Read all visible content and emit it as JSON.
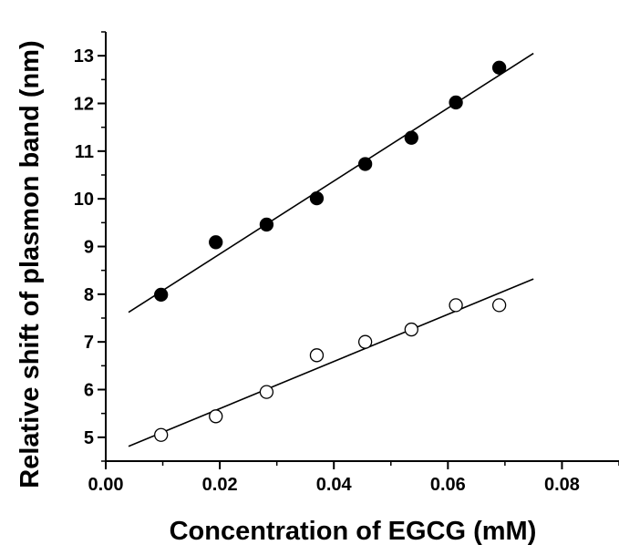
{
  "chart_data": {
    "type": "scatter",
    "title": "",
    "xlabel": "Concentration of EGCG (mM)",
    "ylabel": "Relative shift of plasmon band (nm)",
    "xlim": [
      0.0,
      0.09
    ],
    "ylim": [
      4.5,
      13.5
    ],
    "x_ticks": [
      0.0,
      0.02,
      0.04,
      0.06,
      0.08
    ],
    "x_tick_labels": [
      "0.00",
      "0.02",
      "0.04",
      "0.06",
      "0.08"
    ],
    "y_ticks": [
      5,
      6,
      7,
      8,
      9,
      10,
      11,
      12,
      13
    ],
    "y_tick_labels": [
      "5",
      "6",
      "7",
      "8",
      "9",
      "10",
      "11",
      "12",
      "13"
    ],
    "grid": false,
    "legend": "none",
    "series": [
      {
        "marker": "filled-circle",
        "x": [
          0.0097,
          0.0193,
          0.0282,
          0.037,
          0.0455,
          0.0536,
          0.0614,
          0.069
        ],
        "y": [
          7.99,
          9.09,
          9.46,
          10.01,
          10.73,
          11.28,
          12.02,
          12.75
        ],
        "fit_line": {
          "x": [
            0.004,
            0.075
          ],
          "y": [
            7.62,
            13.05
          ]
        }
      },
      {
        "marker": "open-circle",
        "x": [
          0.0097,
          0.0193,
          0.0282,
          0.037,
          0.0455,
          0.0536,
          0.0614,
          0.069
        ],
        "y": [
          5.05,
          5.44,
          5.95,
          6.72,
          7.0,
          7.26,
          7.77,
          7.77
        ],
        "fit_line": {
          "x": [
            0.004,
            0.075
          ],
          "y": [
            4.81,
            8.32
          ]
        }
      }
    ],
    "colors": {
      "ink": "#000000",
      "background": "#ffffff"
    }
  }
}
